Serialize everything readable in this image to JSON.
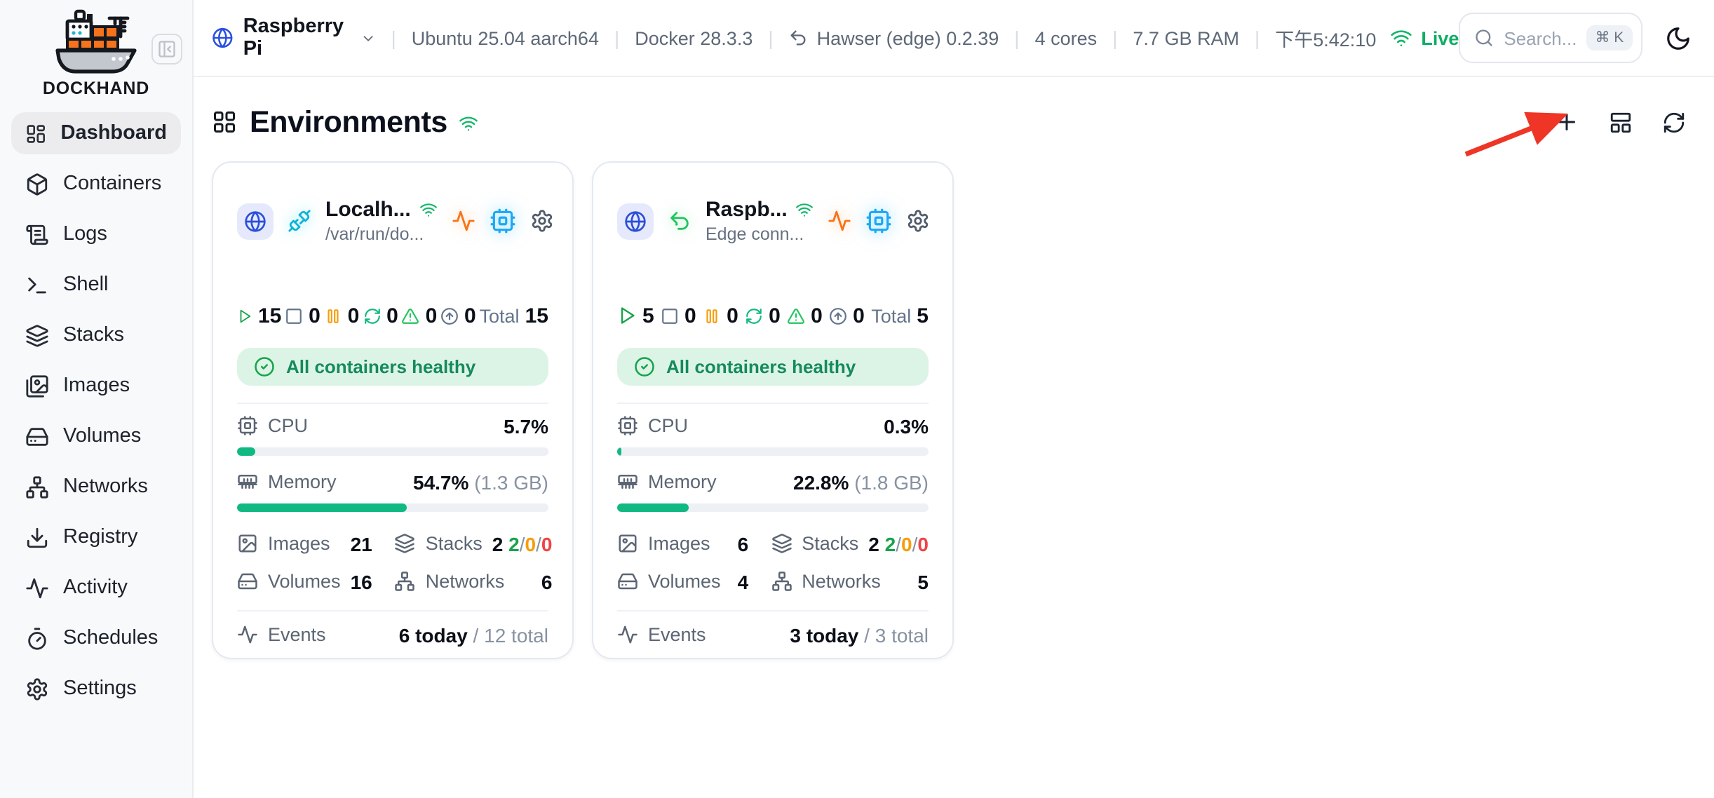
{
  "app": {
    "brand": "DOCKHAND"
  },
  "sidebar": {
    "items": [
      {
        "label": "Dashboard",
        "icon": "layout-dashboard-icon",
        "active": true
      },
      {
        "label": "Containers",
        "icon": "box-icon"
      },
      {
        "label": "Logs",
        "icon": "scroll-text-icon"
      },
      {
        "label": "Shell",
        "icon": "terminal-icon"
      },
      {
        "label": "Stacks",
        "icon": "layers-icon"
      },
      {
        "label": "Images",
        "icon": "images-icon"
      },
      {
        "label": "Volumes",
        "icon": "hard-drive-icon"
      },
      {
        "label": "Networks",
        "icon": "network-icon"
      },
      {
        "label": "Registry",
        "icon": "download-icon"
      },
      {
        "label": "Activity",
        "icon": "activity-icon"
      },
      {
        "label": "Schedules",
        "icon": "timer-icon"
      },
      {
        "label": "Settings",
        "icon": "gear-icon"
      }
    ]
  },
  "topbar": {
    "host": "Raspberry Pi",
    "os": "Ubuntu 25.04 aarch64",
    "docker": "Docker 28.3.3",
    "agent": "Hawser (edge) 0.2.39",
    "cores": "4 cores",
    "ram": "7.7 GB RAM",
    "time": "下午5:42:10",
    "live": "Live",
    "search": {
      "placeholder": "Search...",
      "shortcut": "⌘ K"
    }
  },
  "page": {
    "title": "Environments",
    "actions": [
      {
        "name": "add",
        "icon": "plus-icon"
      },
      {
        "name": "layout",
        "icon": "layout-panel-icon"
      },
      {
        "name": "refresh",
        "icon": "refresh-icon"
      }
    ]
  },
  "cards": [
    {
      "title": "Localh...",
      "subtitle": "/var/run/do...",
      "connection_icon": "plug-icon",
      "stats": {
        "running": "15",
        "stopped": "0",
        "paused": "0",
        "restarting": "0",
        "warning": "0",
        "updates": "0",
        "total_label": "Total",
        "total": "15"
      },
      "health": "All containers healthy",
      "cpu": {
        "label": "CPU",
        "value": "5.7%",
        "pct": 5.7
      },
      "memory": {
        "label": "Memory",
        "value": "54.7%",
        "detail": "(1.3 GB)",
        "pct": 54.7
      },
      "images": {
        "label": "Images",
        "value": "21"
      },
      "stacks": {
        "label": "Stacks",
        "value": "2",
        "ok": "2",
        "warn": "0",
        "err": "0",
        "sep": "/"
      },
      "volumes": {
        "label": "Volumes",
        "value": "16"
      },
      "networks": {
        "label": "Networks",
        "value": "6"
      },
      "events": {
        "label": "Events",
        "today": "6 today",
        "divider": " / ",
        "total": "12 total"
      }
    },
    {
      "title": "Raspb...",
      "subtitle": "Edge conn...",
      "connection_icon": "edge-undo-icon",
      "stats": {
        "running": "5",
        "stopped": "0",
        "paused": "0",
        "restarting": "0",
        "warning": "0",
        "updates": "0",
        "total_label": "Total",
        "total": "5"
      },
      "health": "All containers healthy",
      "cpu": {
        "label": "CPU",
        "value": "0.3%",
        "pct": 0.3
      },
      "memory": {
        "label": "Memory",
        "value": "22.8%",
        "detail": "(1.8 GB)",
        "pct": 22.8
      },
      "images": {
        "label": "Images",
        "value": "6"
      },
      "stacks": {
        "label": "Stacks",
        "value": "2",
        "ok": "2",
        "warn": "0",
        "err": "0",
        "sep": "/"
      },
      "volumes": {
        "label": "Volumes",
        "value": "4"
      },
      "networks": {
        "label": "Networks",
        "value": "5"
      },
      "events": {
        "label": "Events",
        "today": "3 today",
        "divider": " / ",
        "total": "3 total"
      }
    }
  ],
  "colors": {
    "accent_blue": "#2B50E0",
    "green_live": "#0FAE63",
    "bar_green": "#10B981",
    "orange_pulse": "#F97316",
    "amber_paused": "#F59E0B",
    "red_error": "#EF4444",
    "cyan_chip": "#1BA8F5",
    "arrow_red": "#EE3526",
    "health_bg": "#DCF4E6"
  }
}
